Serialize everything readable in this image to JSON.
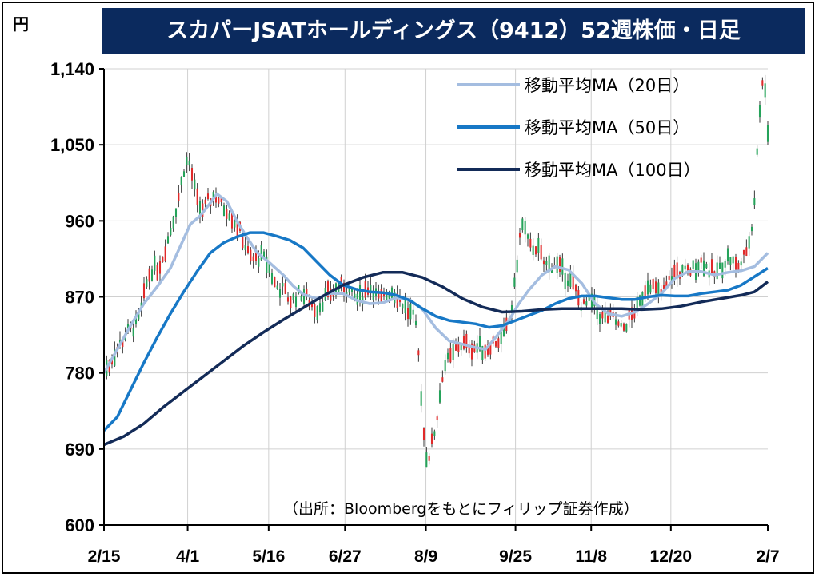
{
  "chart_data": {
    "type": "candlestick",
    "title": "スカパーJSATホールディングス（9412）52週株価・日足",
    "unit_label": "円",
    "source": "（出所：Bloombergをもとにフィリップ証券作成）",
    "ylim": [
      600,
      1140
    ],
    "yticks": [
      600,
      690,
      780,
      870,
      960,
      1050,
      1140
    ],
    "ytick_labels": [
      "600",
      "690",
      "780",
      "870",
      "960",
      "1,050",
      "1,140"
    ],
    "xlim": [
      0,
      100
    ],
    "xticks": [
      {
        "label": "2/15",
        "pos": 0
      },
      {
        "label": "4/1",
        "pos": 12.6
      },
      {
        "label": "5/16",
        "pos": 24.8
      },
      {
        "label": "6/27",
        "pos": 36.3
      },
      {
        "label": "8/9",
        "pos": 48.5
      },
      {
        "label": "9/25",
        "pos": 62.0
      },
      {
        "label": "11/8",
        "pos": 73.4
      },
      {
        "label": "12/20",
        "pos": 85.4
      },
      {
        "label": "2/7",
        "pos": 100
      }
    ],
    "grid": true,
    "legend_position": "top-right",
    "up_color": "#e02a2a",
    "down_color": "#25a35a",
    "series": [
      {
        "name": "移動平均MA（20日）",
        "color": "#a4bde0",
        "width": 3.5,
        "points": [
          [
            0,
            780
          ],
          [
            2,
            808
          ],
          [
            4,
            836
          ],
          [
            6,
            862
          ],
          [
            8,
            882
          ],
          [
            10,
            904
          ],
          [
            11.5,
            930
          ],
          [
            13,
            956
          ],
          [
            14.5,
            966
          ],
          [
            16,
            981
          ],
          [
            17,
            992
          ],
          [
            18.5,
            983
          ],
          [
            20,
            960
          ],
          [
            21.5,
            941
          ],
          [
            23,
            923
          ],
          [
            25,
            910
          ],
          [
            27,
            896
          ],
          [
            28.5,
            883
          ],
          [
            30,
            873
          ],
          [
            32,
            868
          ],
          [
            34,
            874
          ],
          [
            36,
            874
          ],
          [
            38,
            866
          ],
          [
            40,
            862
          ],
          [
            42,
            863
          ],
          [
            44,
            869
          ],
          [
            46,
            867
          ],
          [
            48,
            855
          ],
          [
            50,
            833
          ],
          [
            52,
            818
          ],
          [
            54,
            814
          ],
          [
            56,
            810
          ],
          [
            57.5,
            808
          ],
          [
            59,
            822
          ],
          [
            61,
            842
          ],
          [
            62.5,
            862
          ],
          [
            64,
            878
          ],
          [
            66,
            896
          ],
          [
            68,
            906
          ],
          [
            70,
            902
          ],
          [
            72,
            886
          ],
          [
            74,
            862
          ],
          [
            76,
            850
          ],
          [
            78,
            847
          ],
          [
            80,
            852
          ],
          [
            82,
            862
          ],
          [
            84,
            874
          ],
          [
            86,
            892
          ],
          [
            88,
            900
          ],
          [
            90,
            900
          ],
          [
            92,
            896
          ],
          [
            94,
            899
          ],
          [
            96,
            901
          ],
          [
            98,
            906
          ],
          [
            100,
            922
          ]
        ]
      },
      {
        "name": "移動平均MA（50日）",
        "color": "#1778c6",
        "width": 3.5,
        "points": [
          [
            0,
            712
          ],
          [
            2,
            728
          ],
          [
            4,
            760
          ],
          [
            6,
            792
          ],
          [
            8,
            822
          ],
          [
            10,
            850
          ],
          [
            12,
            876
          ],
          [
            14,
            900
          ],
          [
            16,
            922
          ],
          [
            18,
            934
          ],
          [
            20,
            941
          ],
          [
            22,
            946
          ],
          [
            24,
            946
          ],
          [
            26,
            942
          ],
          [
            28,
            937
          ],
          [
            30,
            928
          ],
          [
            32,
            912
          ],
          [
            34,
            896
          ],
          [
            36,
            884
          ],
          [
            38,
            879
          ],
          [
            40,
            876
          ],
          [
            42,
            875
          ],
          [
            44,
            872
          ],
          [
            46,
            866
          ],
          [
            48,
            856
          ],
          [
            50,
            847
          ],
          [
            52,
            842
          ],
          [
            54,
            840
          ],
          [
            56,
            838
          ],
          [
            58,
            834
          ],
          [
            60,
            836
          ],
          [
            62,
            842
          ],
          [
            64,
            848
          ],
          [
            66,
            854
          ],
          [
            68,
            862
          ],
          [
            70,
            868
          ],
          [
            72,
            871
          ],
          [
            74,
            871
          ],
          [
            76,
            869
          ],
          [
            78,
            867
          ],
          [
            80,
            867
          ],
          [
            82,
            870
          ],
          [
            84,
            872
          ],
          [
            86,
            871
          ],
          [
            88,
            871
          ],
          [
            90,
            874
          ],
          [
            92,
            876
          ],
          [
            94,
            878
          ],
          [
            96,
            884
          ],
          [
            98,
            894
          ],
          [
            100,
            904
          ]
        ]
      },
      {
        "name": "移動平均MA（100日）",
        "color": "#132b58",
        "width": 3.5,
        "points": [
          [
            0,
            695
          ],
          [
            3,
            705
          ],
          [
            6,
            720
          ],
          [
            9,
            740
          ],
          [
            12,
            758
          ],
          [
            15,
            776
          ],
          [
            18,
            794
          ],
          [
            21,
            812
          ],
          [
            24,
            828
          ],
          [
            27,
            843
          ],
          [
            30,
            857
          ],
          [
            33,
            871
          ],
          [
            36,
            884
          ],
          [
            39,
            893
          ],
          [
            42,
            899
          ],
          [
            45,
            899
          ],
          [
            48,
            893
          ],
          [
            51,
            882
          ],
          [
            54,
            868
          ],
          [
            57,
            858
          ],
          [
            60,
            852
          ],
          [
            63,
            853
          ],
          [
            66,
            855
          ],
          [
            69,
            856
          ],
          [
            72,
            856
          ],
          [
            75,
            856
          ],
          [
            78,
            856
          ],
          [
            81,
            855
          ],
          [
            84,
            856
          ],
          [
            87,
            859
          ],
          [
            90,
            864
          ],
          [
            93,
            868
          ],
          [
            96,
            872
          ],
          [
            98,
            876
          ],
          [
            100,
            888
          ]
        ]
      }
    ]
  }
}
